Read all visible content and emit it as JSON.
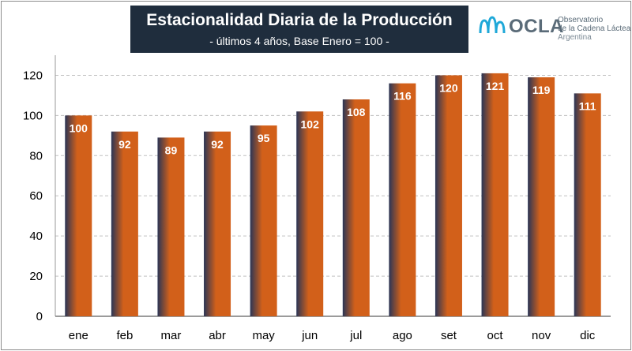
{
  "header": {
    "title": "Estacionalidad Diaria de la Producción",
    "subtitle": "- últimos 4 años, Base Enero = 100 -"
  },
  "logo": {
    "name": "OCLA",
    "line1": "Observatorio",
    "line2": "de la Cadena Láctea",
    "line3": "Argentina"
  },
  "colors": {
    "bar_light": "#d2601a",
    "bar_dark": "#2a3556",
    "gridline": "#c0c0c0",
    "logo_blue": "#1fa8d8"
  },
  "chart_data": {
    "type": "bar",
    "categories": [
      "ene",
      "feb",
      "mar",
      "abr",
      "may",
      "jun",
      "jul",
      "ago",
      "set",
      "oct",
      "nov",
      "dic"
    ],
    "values": [
      100,
      92,
      89,
      92,
      95,
      102,
      108,
      116,
      120,
      121,
      119,
      111
    ],
    "data_labels": [
      "100",
      "92",
      "89",
      "92",
      "95",
      "102",
      "108",
      "116",
      "120",
      "121",
      "119",
      "111"
    ],
    "ylim": [
      0,
      130
    ],
    "yticks": [
      0,
      20,
      40,
      60,
      80,
      100,
      120
    ],
    "grid": true
  }
}
